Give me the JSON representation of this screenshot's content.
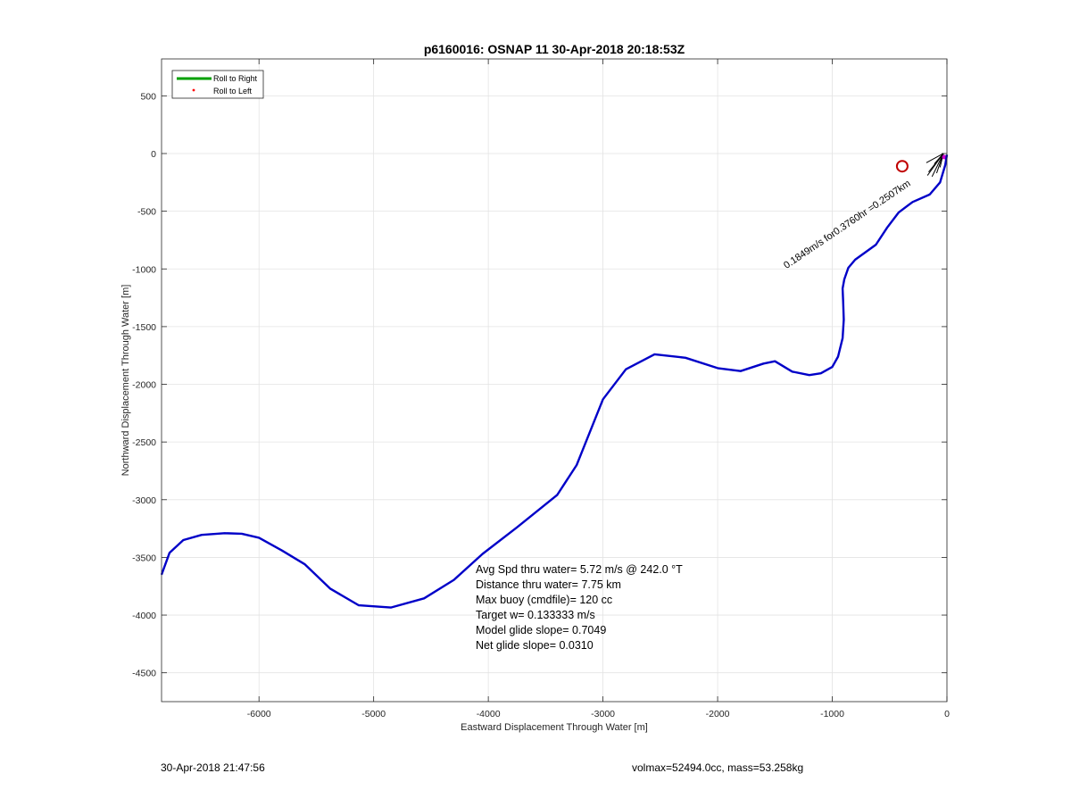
{
  "chart_data": {
    "type": "line",
    "title": "p6160016: OSNAP 11 30-Apr-2018 20:18:53Z",
    "xlabel": "Eastward Displacement Through Water [m]",
    "ylabel": "Northward Displacement Through Water [m]",
    "xlim": [
      -6850,
      0
    ],
    "ylim": [
      -4750,
      820
    ],
    "xticks": [
      -6000,
      -5000,
      -4000,
      -3000,
      -2000,
      -1000,
      0
    ],
    "yticks": [
      500,
      0,
      -500,
      -1000,
      -1500,
      -2000,
      -2500,
      -3000,
      -3500,
      -4000,
      -4500
    ],
    "grid": true,
    "legend": {
      "placement": "top-left",
      "entries": [
        {
          "label": "Roll to Right",
          "color": "#00a000",
          "marker": "line"
        },
        {
          "label": "Roll to Left",
          "color": "#ff0000",
          "marker": "dot"
        }
      ]
    },
    "series": [
      {
        "color": "#0000c8",
        "points": [
          [
            -6850,
            -3650
          ],
          [
            -6780,
            -3460
          ],
          [
            -6660,
            -3350
          ],
          [
            -6500,
            -3305
          ],
          [
            -6300,
            -3290
          ],
          [
            -6150,
            -3295
          ],
          [
            -6000,
            -3330
          ],
          [
            -5800,
            -3440
          ],
          [
            -5600,
            -3560
          ],
          [
            -5380,
            -3770
          ],
          [
            -5130,
            -3915
          ],
          [
            -4850,
            -3935
          ],
          [
            -4560,
            -3855
          ],
          [
            -4300,
            -3695
          ],
          [
            -4050,
            -3470
          ],
          [
            -3750,
            -3240
          ],
          [
            -3400,
            -2960
          ],
          [
            -3230,
            -2700
          ],
          [
            -3000,
            -2130
          ],
          [
            -2800,
            -1870
          ],
          [
            -2550,
            -1740
          ],
          [
            -2280,
            -1770
          ],
          [
            -2000,
            -1860
          ],
          [
            -1800,
            -1885
          ],
          [
            -1600,
            -1820
          ],
          [
            -1500,
            -1800
          ],
          [
            -1350,
            -1890
          ],
          [
            -1200,
            -1920
          ],
          [
            -1100,
            -1905
          ],
          [
            -1000,
            -1850
          ],
          [
            -950,
            -1760
          ],
          [
            -910,
            -1600
          ],
          [
            -900,
            -1440
          ],
          [
            -905,
            -1280
          ],
          [
            -910,
            -1170
          ],
          [
            -895,
            -1090
          ],
          [
            -860,
            -990
          ],
          [
            -800,
            -920
          ],
          [
            -620,
            -790
          ],
          [
            -520,
            -640
          ],
          [
            -420,
            -510
          ],
          [
            -300,
            -420
          ],
          [
            -150,
            -355
          ],
          [
            -60,
            -250
          ],
          [
            -15,
            -100
          ],
          [
            0,
            -10
          ]
        ]
      }
    ],
    "markers": [
      {
        "type": "circle",
        "x": -390,
        "y": -110,
        "color": "#c00000"
      }
    ],
    "annotations": [
      "Avg Spd thru water=  5.72 m/s @ 242.0 °T",
      "Distance thru water=  7.75 km",
      "Max buoy (cmdfile)= 120 cc",
      "Target w= 0.133333 m/s",
      "Model glide slope= 0.7049",
      "Net glide slope= 0.0310"
    ],
    "vector_label": "0.1849m/s for0.3760hr =0.2507km"
  },
  "footer": {
    "left": "30-Apr-2018 21:47:56",
    "right": "volmax=52494.0cc, mass=53.258kg"
  }
}
